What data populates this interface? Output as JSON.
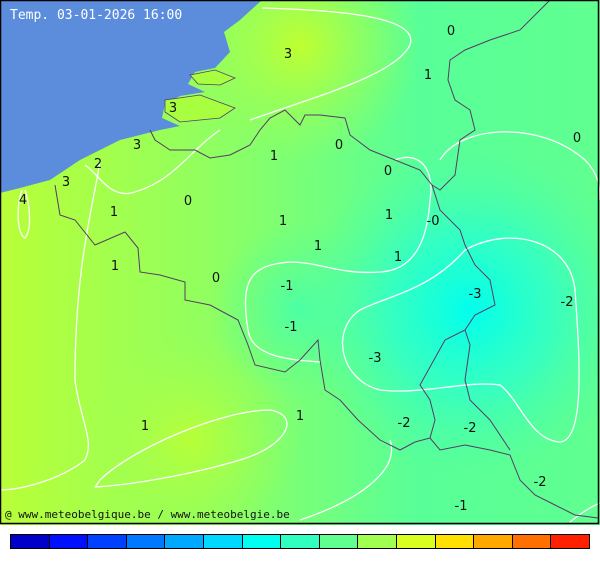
{
  "title": "Temp. 03-01-2026 16:00",
  "credit": "@ www.meteobelgique.be / www.meteobelgie.be",
  "colors": {
    "sea": "#5b8ddc",
    "border": "#5a3a6a",
    "contour": "#ffffff",
    "colorbar": [
      "#0000c8",
      "#0010ff",
      "#0040ff",
      "#0078ff",
      "#00a8ff",
      "#00d8ff",
      "#00fff0",
      "#30ffc0",
      "#60ff90",
      "#a0ff50",
      "#d8ff20",
      "#ffe000",
      "#ffa800",
      "#ff7000",
      "#ff2000"
    ]
  },
  "temperature_labels": [
    "3",
    "0",
    "1",
    "3",
    "3",
    "2",
    "3",
    "4",
    "1",
    "0",
    "0",
    "0",
    "0",
    "1",
    "1",
    "1",
    "-0",
    "1",
    "1",
    "1",
    "0",
    "-1",
    "-3",
    "-2",
    "-1",
    "-3",
    "1",
    "-2",
    "-2",
    "1",
    "-2",
    "-1"
  ]
}
